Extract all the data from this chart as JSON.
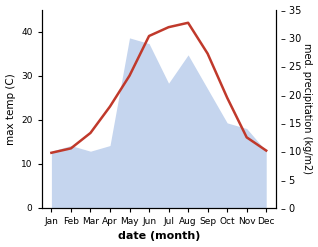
{
  "months": [
    "Jan",
    "Feb",
    "Mar",
    "Apr",
    "May",
    "Jun",
    "Jul",
    "Aug",
    "Sep",
    "Oct",
    "Nov",
    "Dec"
  ],
  "x": [
    1,
    2,
    3,
    4,
    5,
    6,
    7,
    8,
    9,
    10,
    11,
    12
  ],
  "temperature": [
    12.5,
    13.5,
    17,
    23,
    30,
    39,
    41,
    42,
    35,
    25,
    16,
    13
  ],
  "precipitation": [
    10,
    11,
    10,
    11,
    30,
    29,
    22,
    27,
    21,
    15,
    14,
    10
  ],
  "temp_color": "#c0392b",
  "precip_fill_color": "#c5d5ee",
  "ylabel_left": "max temp (C)",
  "ylabel_right": "med. precipitation (kg/m2)",
  "xlabel": "date (month)",
  "ylim_left": [
    0,
    45
  ],
  "ylim_right": [
    0,
    35
  ],
  "yticks_left": [
    0,
    10,
    20,
    30,
    40
  ],
  "yticks_right": [
    0,
    5,
    10,
    15,
    20,
    25,
    30,
    35
  ],
  "bg_color": "#ffffff"
}
